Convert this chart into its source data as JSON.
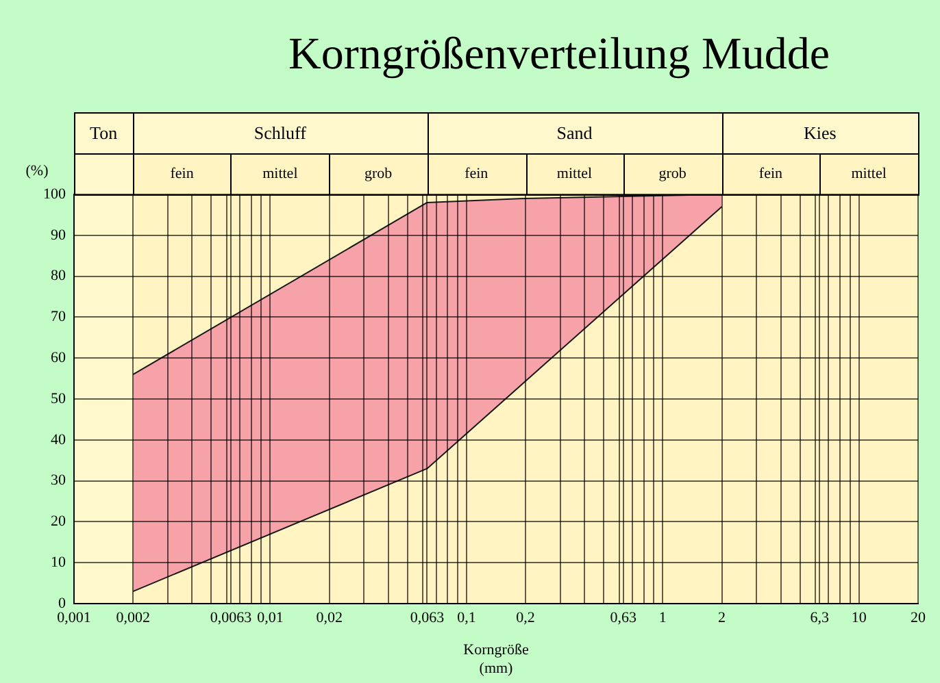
{
  "chart_data": {
    "type": "area",
    "title": "Korngrößenverteilung Mudde",
    "xlabel": "Korngröße\n(mm)",
    "ylabel": "(%)",
    "series": [
      {
        "color": "#f6a2a8",
        "x": [
          0.002,
          0.063,
          0.2,
          2
        ],
        "values": [
          56,
          98,
          99,
          100
        ]
      },
      {
        "color": "#fff4c2",
        "x": [
          0.002,
          0.063,
          2
        ],
        "values": [
          3,
          33,
          97
        ]
      }
    ],
    "log": "x",
    "xlim": [
      0.001,
      20
    ],
    "ylim": [
      0,
      100
    ],
    "xticks": [
      {
        "value": 0.001,
        "label": "0,001"
      },
      {
        "value": 0.002,
        "label": "0,002"
      },
      {
        "value": 0.003,
        "label": null
      },
      {
        "value": 0.004,
        "label": null
      },
      {
        "value": 0.005,
        "label": null
      },
      {
        "value": 0.006,
        "label": null
      },
      {
        "value": 0.0063,
        "label": "0,0063"
      },
      {
        "value": 0.007,
        "label": null
      },
      {
        "value": 0.008,
        "label": null
      },
      {
        "value": 0.009,
        "label": null
      },
      {
        "value": 0.01,
        "label": "0,01"
      },
      {
        "value": 0.02,
        "label": "0,02"
      },
      {
        "value": 0.03,
        "label": null
      },
      {
        "value": 0.04,
        "label": null
      },
      {
        "value": 0.05,
        "label": null
      },
      {
        "value": 0.06,
        "label": null
      },
      {
        "value": 0.063,
        "label": "0,063"
      },
      {
        "value": 0.07,
        "label": null
      },
      {
        "value": 0.08,
        "label": null
      },
      {
        "value": 0.09,
        "label": null
      },
      {
        "value": 0.1,
        "label": "0,1"
      },
      {
        "value": 0.2,
        "label": "0,2"
      },
      {
        "value": 0.3,
        "label": null
      },
      {
        "value": 0.4,
        "label": null
      },
      {
        "value": 0.5,
        "label": null
      },
      {
        "value": 0.6,
        "label": null
      },
      {
        "value": 0.63,
        "label": "0,63"
      },
      {
        "value": 0.7,
        "label": null
      },
      {
        "value": 0.8,
        "label": null
      },
      {
        "value": 0.9,
        "label": null
      },
      1,
      2,
      {
        "value": 3,
        "label": null
      },
      {
        "value": 4,
        "label": null
      },
      {
        "value": 5,
        "label": null
      },
      {
        "value": 6,
        "label": null
      },
      {
        "value": 6.3,
        "label": "6,3"
      },
      {
        "value": 7,
        "label": null
      },
      {
        "value": 8,
        "label": null
      },
      {
        "value": 9,
        "label": null
      },
      10,
      20
    ],
    "yticks": [
      0,
      10,
      20,
      30,
      40,
      50,
      60,
      70,
      80,
      90,
      100
    ],
    "grid": true,
    "bands": [
      {
        "axis": "x",
        "from": 0.001,
        "to": 0.002,
        "label": "Ton",
        "color": "#fff8cc"
      },
      {
        "axis": "x",
        "from": 0.002,
        "to": 0.063,
        "label": "Schluff",
        "color": "#fff8cc"
      },
      {
        "axis": "x",
        "from": 0.063,
        "to": 2,
        "label": "Sand",
        "color": "#fff8cc"
      },
      {
        "axis": "x",
        "from": 2,
        "to": 20,
        "label": "Kies",
        "color": "#fff8cc"
      },
      {
        "axis": "x",
        "from": 0.002,
        "to": 0.0063,
        "label": "fein",
        "color": "#fff4c2"
      },
      {
        "axis": "x",
        "from": 0.0063,
        "to": 0.02,
        "label": "mittel",
        "color": "#fff4c2"
      },
      {
        "axis": "x",
        "from": 0.02,
        "to": 0.063,
        "label": "grob",
        "color": "#fff4c2"
      },
      {
        "axis": "x",
        "from": 0.063,
        "to": 0.2,
        "label": "fein",
        "color": "#fff4c2"
      },
      {
        "axis": "x",
        "from": 0.2,
        "to": 0.63,
        "label": "mittel",
        "color": "#fff4c2"
      },
      {
        "axis": "x",
        "from": 0.63,
        "to": 2,
        "label": "grob",
        "color": "#fff4c2"
      },
      {
        "axis": "x",
        "from": 2,
        "to": 6.3,
        "label": "fein",
        "color": "#fff4c2"
      },
      {
        "axis": "x",
        "from": 6.3,
        "to": 20,
        "label": "mittel",
        "color": "#fff4c2"
      }
    ]
  }
}
